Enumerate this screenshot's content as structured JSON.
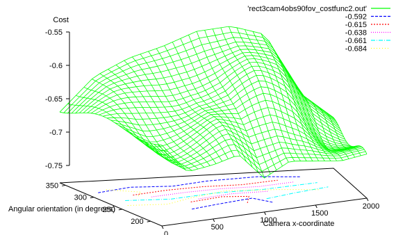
{
  "chart_data": {
    "type": "surface3d",
    "zlabel": "Cost",
    "xlabel": "Camera x-coordinate",
    "ylabel": "Angular orientation (in degrees)",
    "z_ticks": [
      "-0.55",
      "-0.6",
      "-0.65",
      "-0.7",
      "-0.75"
    ],
    "z_tick_values": [
      -0.55,
      -0.6,
      -0.65,
      -0.7,
      -0.75
    ],
    "zlim": [
      -0.75,
      -0.55
    ],
    "x_ticks": [
      "0",
      "500",
      "1000",
      "1500",
      "2000"
    ],
    "x_tick_values": [
      0,
      500,
      1000,
      1500,
      2000
    ],
    "xlim": [
      0,
      2000
    ],
    "y_ticks": [
      "200",
      "250",
      "300",
      "350"
    ],
    "y_tick_values": [
      200,
      250,
      300,
      350
    ],
    "ylim": [
      180,
      360
    ],
    "grid": false,
    "legend_position": "top-right",
    "series": [
      {
        "name": "'rect3cam4obs90fov_costfunc2.out'",
        "style": "surface",
        "color": "#00ff00"
      },
      {
        "name": "-0.592",
        "style": "contour",
        "color": "#0000ff",
        "level": -0.592
      },
      {
        "name": "-0.615",
        "style": "contour",
        "color": "#ff0000",
        "level": -0.615
      },
      {
        "name": "-0.638",
        "style": "contour",
        "color": "#ff00ff",
        "level": -0.638
      },
      {
        "name": "-0.661",
        "style": "contour",
        "color": "#00ffff",
        "level": -0.661
      },
      {
        "name": "-0.684",
        "style": "contour",
        "color": "#ffff00",
        "level": -0.684
      }
    ],
    "surface_profile": {
      "x": [
        0,
        250,
        500,
        750,
        1000,
        1250,
        1500,
        1750,
        2000
      ],
      "front_edge_z": [
        -0.655,
        -0.7,
        -0.695,
        -0.685,
        -0.725,
        -0.705,
        -0.71,
        -0.715,
        -0.71
      ],
      "back_edge_z": [
        -0.67,
        -0.62,
        -0.595,
        -0.58,
        -0.56,
        -0.555,
        -0.57,
        -0.66,
        -0.7
      ]
    }
  }
}
